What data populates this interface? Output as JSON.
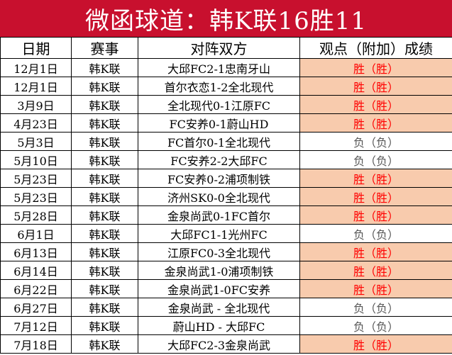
{
  "title": "微函球道：韩K联16胜11",
  "headers": [
    "日期",
    "赛事",
    "对阵双方",
    "观点（附加）成绩"
  ],
  "rows": [
    {
      "date": "12月1日",
      "league": "韩K联",
      "match": "大邱FC2-1忠南牙山",
      "result": "胜（胜）",
      "win": true
    },
    {
      "date": "12月1日",
      "league": "韩K联",
      "match": "首尔衣恋1-2全北现代",
      "result": "胜（胜）",
      "win": true
    },
    {
      "date": "3月9日",
      "league": "韩K联",
      "match": "全北现代0-1江原FC",
      "result": "胜（胜）",
      "win": true
    },
    {
      "date": "4月23日",
      "league": "韩K联",
      "match": "FC安养0-1蔚山HD",
      "result": "胜（胜）",
      "win": true
    },
    {
      "date": "5月3日",
      "league": "韩K联",
      "match": "FC首尔0-1全北现代",
      "result": "负（负）",
      "win": false
    },
    {
      "date": "5月10日",
      "league": "韩K联",
      "match": "FC安养2-2大邱FC",
      "result": "负（负）",
      "win": false
    },
    {
      "date": "5月23日",
      "league": "韩K联",
      "match": "FC安养0-2浦项制铁",
      "result": "胜（胜）",
      "win": true
    },
    {
      "date": "5月23日",
      "league": "韩K联",
      "match": "济州SK0-0全北现代",
      "result": "胜（胜）",
      "win": true
    },
    {
      "date": "5月28日",
      "league": "韩K联",
      "match": "金泉尚武0-1FC首尔",
      "result": "胜（胜）",
      "win": true
    },
    {
      "date": "6月1日",
      "league": "韩K联",
      "match": "大邱FC1-1光州FC",
      "result": "负（负）",
      "win": false
    },
    {
      "date": "6月13日",
      "league": "韩K联",
      "match": "江原FC0-3全北现代",
      "result": "胜（胜）",
      "win": true
    },
    {
      "date": "6月14日",
      "league": "韩K联",
      "match": "金泉尚武1-0浦项制铁",
      "result": "胜（胜）",
      "win": true
    },
    {
      "date": "6月22日",
      "league": "韩K联",
      "match": "金泉尚武1-0FC安养",
      "result": "胜（胜）",
      "win": true
    },
    {
      "date": "6月27日",
      "league": "韩K联",
      "match": "金泉尚武 - 全北现代",
      "result": "负（负）",
      "win": false
    },
    {
      "date": "7月12日",
      "league": "韩K联",
      "match": "蔚山HD - 大邱FC",
      "result": "负（负）",
      "win": false
    },
    {
      "date": "7月18日",
      "league": "韩K联",
      "match": "大邱FC2-3金泉尚武",
      "result": "胜（胜）",
      "win": true
    }
  ],
  "colors": {
    "title_bg": "#c8102e",
    "win_bg": "#f8cbad",
    "win_text": "#ff0000",
    "loss_text": "#595959"
  }
}
